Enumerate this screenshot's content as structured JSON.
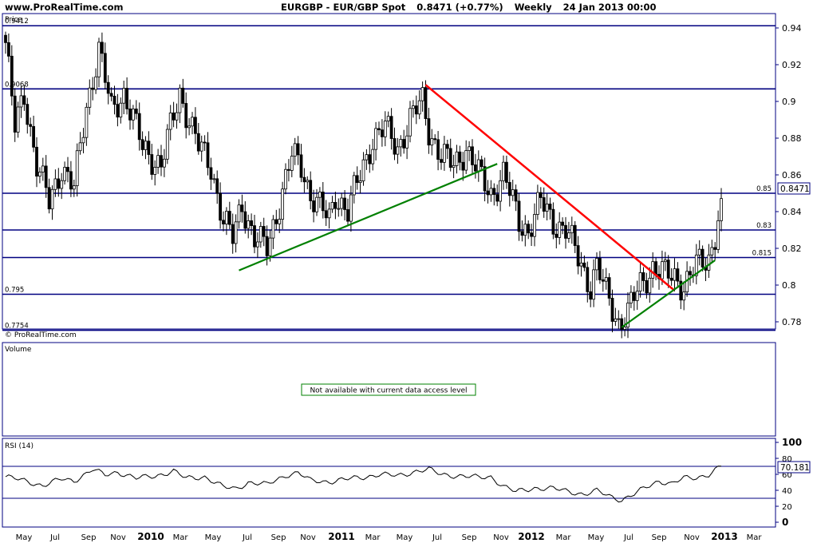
{
  "header": {
    "site": "www.ProRealTime.com",
    "symbol": "EURGBP - EUR/GBP Spot",
    "price": "0.8471 (+0.77%)",
    "period": "Weekly",
    "datetime": "24 Jan 2013 00:00"
  },
  "colors": {
    "frame": "#000080",
    "hline": "#000080",
    "trend_red": "#ff0000",
    "trend_green": "#008000",
    "candle_up": "#ffffff",
    "candle_down": "#000000",
    "notice_border": "#008000"
  },
  "chart_data": [
    {
      "type": "candlestick",
      "title": "Price",
      "ylim": [
        0.77,
        0.945
      ],
      "y_ticks": [
        0.78,
        0.8,
        0.82,
        0.84,
        0.86,
        0.88,
        0.9,
        0.92,
        0.94
      ],
      "y_tick_labels": [
        "0.78",
        "0.8",
        "0.82",
        "0.84",
        "0.86",
        "0.88",
        "0.9",
        "0.92",
        "0.94"
      ],
      "x_tick_labels": [
        "May",
        "Jul",
        "Sep",
        "Nov",
        "2010",
        "Mar",
        "May",
        "Jul",
        "Sep",
        "Nov",
        "2011",
        "Mar",
        "May",
        "Jul",
        "Sep",
        "Nov",
        "2012",
        "Mar",
        "May",
        "Jul",
        "Sep",
        "Nov",
        "2013",
        "Mar"
      ],
      "last_price": "0.8471",
      "horizontal_levels": [
        {
          "value": 0.9412,
          "label": "0.9412"
        },
        {
          "value": 0.9068,
          "label": "0.9068"
        },
        {
          "value": 0.85,
          "label": "0.85"
        },
        {
          "value": 0.83,
          "label": "0.83"
        },
        {
          "value": 0.815,
          "label": "0.815"
        },
        {
          "value": 0.795,
          "label": "0.795"
        },
        {
          "value": 0.7754,
          "label": "0.7754"
        }
      ],
      "trendlines": [
        {
          "color": "red",
          "from": [
            135,
            0.909
          ],
          "to": [
            215,
            0.797
          ]
        },
        {
          "color": "green",
          "from": [
            75,
            0.808
          ],
          "to": [
            158,
            0.866
          ]
        },
        {
          "color": "green",
          "from": [
            198,
            0.777
          ],
          "to": [
            228,
            0.8135
          ]
        }
      ],
      "copyright": "© ProRealTime.com",
      "keyframes": [
        [
          0,
          0.932
        ],
        [
          3,
          0.885
        ],
        [
          6,
          0.905
        ],
        [
          10,
          0.865
        ],
        [
          14,
          0.845
        ],
        [
          18,
          0.865
        ],
        [
          22,
          0.852
        ],
        [
          26,
          0.898
        ],
        [
          30,
          0.928
        ],
        [
          34,
          0.895
        ],
        [
          38,
          0.905
        ],
        [
          44,
          0.875
        ],
        [
          50,
          0.865
        ],
        [
          56,
          0.905
        ],
        [
          62,
          0.875
        ],
        [
          66,
          0.865
        ],
        [
          70,
          0.835
        ],
        [
          73,
          0.825
        ],
        [
          76,
          0.845
        ],
        [
          80,
          0.825
        ],
        [
          84,
          0.82
        ],
        [
          88,
          0.845
        ],
        [
          92,
          0.87
        ],
        [
          95,
          0.865
        ],
        [
          98,
          0.85
        ],
        [
          102,
          0.84
        ],
        [
          104,
          0.835
        ],
        [
          106,
          0.85
        ],
        [
          110,
          0.84
        ],
        [
          114,
          0.86
        ],
        [
          118,
          0.88
        ],
        [
          122,
          0.885
        ],
        [
          126,
          0.875
        ],
        [
          130,
          0.89
        ],
        [
          134,
          0.9
        ],
        [
          136,
          0.885
        ],
        [
          140,
          0.87
        ],
        [
          144,
          0.865
        ],
        [
          148,
          0.875
        ],
        [
          152,
          0.86
        ],
        [
          156,
          0.85
        ],
        [
          160,
          0.86
        ],
        [
          162,
          0.85
        ],
        [
          165,
          0.835
        ],
        [
          168,
          0.83
        ],
        [
          172,
          0.845
        ],
        [
          176,
          0.835
        ],
        [
          180,
          0.83
        ],
        [
          184,
          0.815
        ],
        [
          188,
          0.8
        ],
        [
          190,
          0.81
        ],
        [
          193,
          0.795
        ],
        [
          197,
          0.78
        ],
        [
          200,
          0.785
        ],
        [
          204,
          0.8
        ],
        [
          208,
          0.81
        ],
        [
          212,
          0.805
        ],
        [
          215,
          0.805
        ],
        [
          218,
          0.8
        ],
        [
          222,
          0.81
        ],
        [
          226,
          0.815
        ],
        [
          228,
          0.828
        ],
        [
          230,
          0.8471
        ]
      ]
    },
    {
      "type": "bar",
      "title": "Volume",
      "notice": "Not available with current data access level"
    },
    {
      "type": "line",
      "title": "RSI (14)",
      "ylim": [
        0,
        100
      ],
      "y_ticks": [
        0,
        20,
        40,
        60,
        80,
        100
      ],
      "y_tick_labels": [
        "0",
        "20",
        "40",
        "60",
        "80",
        "100"
      ],
      "levels": [
        70,
        30
      ],
      "last_value": "70.181",
      "keyframes": [
        [
          0,
          57
        ],
        [
          6,
          52
        ],
        [
          12,
          46
        ],
        [
          18,
          54
        ],
        [
          22,
          52
        ],
        [
          28,
          66
        ],
        [
          32,
          59
        ],
        [
          36,
          63
        ],
        [
          42,
          55
        ],
        [
          48,
          58
        ],
        [
          54,
          64
        ],
        [
          58,
          55
        ],
        [
          64,
          57
        ],
        [
          70,
          44
        ],
        [
          74,
          42
        ],
        [
          78,
          50
        ],
        [
          84,
          47
        ],
        [
          90,
          59
        ],
        [
          94,
          62
        ],
        [
          98,
          52
        ],
        [
          104,
          51
        ],
        [
          110,
          54
        ],
        [
          116,
          57
        ],
        [
          120,
          60
        ],
        [
          126,
          58
        ],
        [
          132,
          64
        ],
        [
          136,
          66
        ],
        [
          140,
          60
        ],
        [
          146,
          58
        ],
        [
          152,
          56
        ],
        [
          156,
          57
        ],
        [
          160,
          45
        ],
        [
          164,
          38
        ],
        [
          170,
          43
        ],
        [
          176,
          42
        ],
        [
          182,
          38
        ],
        [
          186,
          35
        ],
        [
          190,
          39
        ],
        [
          194,
          33
        ],
        [
          198,
          28
        ],
        [
          202,
          35
        ],
        [
          206,
          44
        ],
        [
          210,
          52
        ],
        [
          214,
          48
        ],
        [
          218,
          55
        ],
        [
          222,
          56
        ],
        [
          226,
          60
        ],
        [
          230,
          70.181
        ]
      ]
    }
  ]
}
